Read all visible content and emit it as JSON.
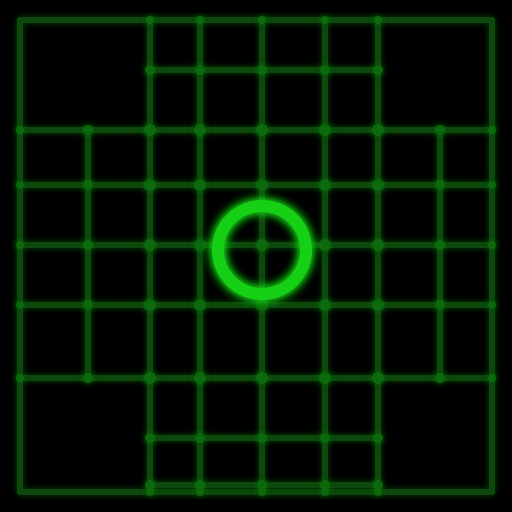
{
  "game": {
    "theme": {
      "background": "#000000",
      "grid_color": "#0b4a0b",
      "grid_glow": "#0f6a0f",
      "ring_color": "#19d019",
      "ring_glow": "#0bbf0b"
    },
    "board": {
      "shape": "cross",
      "cells_across": 7,
      "center_marker": "glowing-ring"
    }
  }
}
